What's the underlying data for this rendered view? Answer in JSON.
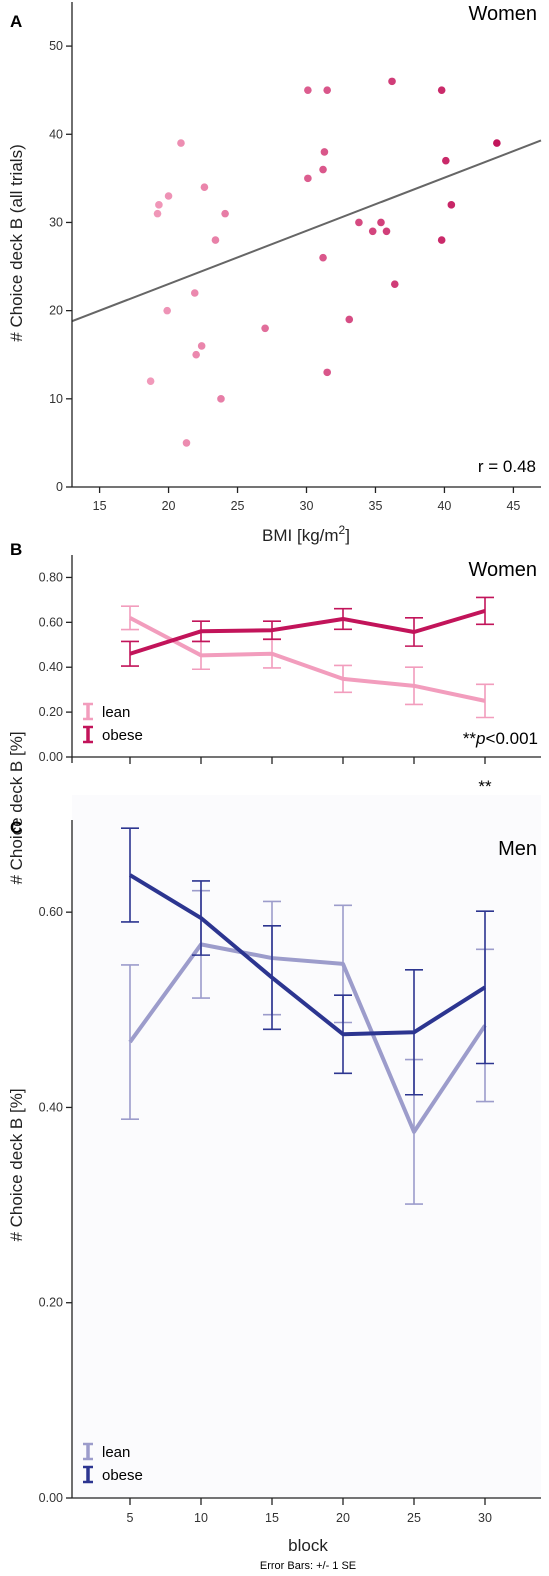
{
  "chart_data": [
    {
      "panel": "A",
      "type": "scatter",
      "title": "Women",
      "xlabel": "BMI [kg/m2]",
      "ylabel": "# Choice deck B (all trials)",
      "xlim": [
        13,
        47
      ],
      "ylim": [
        0,
        55
      ],
      "xticks": [
        15,
        20,
        25,
        30,
        35,
        40,
        45
      ],
      "yticks": [
        0,
        10,
        20,
        30,
        40,
        50
      ],
      "annotation": "r = 0.48",
      "trendline": {
        "x": [
          13,
          47
        ],
        "y": [
          18.8,
          39.3
        ]
      },
      "colors": {
        "low": "#f29dbd",
        "high": "#c2145a",
        "trendline": "#666666"
      },
      "points": [
        {
          "x": 18.7,
          "y": 12
        },
        {
          "x": 19.2,
          "y": 31
        },
        {
          "x": 19.3,
          "y": 32
        },
        {
          "x": 19.9,
          "y": 20
        },
        {
          "x": 20.0,
          "y": 33
        },
        {
          "x": 20.9,
          "y": 39
        },
        {
          "x": 21.3,
          "y": 5
        },
        {
          "x": 21.9,
          "y": 22
        },
        {
          "x": 22.0,
          "y": 15
        },
        {
          "x": 22.4,
          "y": 16
        },
        {
          "x": 22.6,
          "y": 34
        },
        {
          "x": 23.4,
          "y": 28
        },
        {
          "x": 23.8,
          "y": 10
        },
        {
          "x": 24.1,
          "y": 31
        },
        {
          "x": 27.0,
          "y": 18
        },
        {
          "x": 30.1,
          "y": 35
        },
        {
          "x": 30.1,
          "y": 45
        },
        {
          "x": 31.2,
          "y": 26
        },
        {
          "x": 31.2,
          "y": 36
        },
        {
          "x": 31.3,
          "y": 38
        },
        {
          "x": 31.5,
          "y": 45
        },
        {
          "x": 31.5,
          "y": 13
        },
        {
          "x": 33.1,
          "y": 19
        },
        {
          "x": 33.8,
          "y": 30
        },
        {
          "x": 34.8,
          "y": 29
        },
        {
          "x": 35.4,
          "y": 30
        },
        {
          "x": 35.8,
          "y": 29
        },
        {
          "x": 36.2,
          "y": 46
        },
        {
          "x": 36.4,
          "y": 23
        },
        {
          "x": 39.8,
          "y": 28
        },
        {
          "x": 39.8,
          "y": 45
        },
        {
          "x": 40.1,
          "y": 37
        },
        {
          "x": 40.5,
          "y": 32
        },
        {
          "x": 43.8,
          "y": 39
        }
      ]
    },
    {
      "panel": "B",
      "type": "line",
      "title": "Women",
      "xlabel": "",
      "ylabel": "# Choice deck B [%]",
      "ylim": [
        0,
        0.9
      ],
      "yticks": [
        "0.00",
        "0.20",
        "0.40",
        "0.60",
        "0.80"
      ],
      "x": [
        5,
        10,
        15,
        20,
        25,
        30
      ],
      "annotation_marker": "**",
      "annotation_prefix": "**",
      "annotation_p": "p",
      "annotation_rest": "<0.001",
      "series": [
        {
          "name": "lean",
          "color": "#f29dbd",
          "values": [
            0.62,
            0.453,
            0.46,
            0.348,
            0.317,
            0.25
          ],
          "err": [
            0.052,
            0.062,
            0.063,
            0.06,
            0.083,
            0.074
          ]
        },
        {
          "name": "obese",
          "color": "#c2145a",
          "values": [
            0.46,
            0.56,
            0.565,
            0.615,
            0.557,
            0.651
          ],
          "err": [
            0.055,
            0.045,
            0.04,
            0.046,
            0.063,
            0.06
          ]
        }
      ]
    },
    {
      "panel": "C",
      "type": "line",
      "title": "Men",
      "xlabel": "block",
      "ylabel": "# Choice deck B [%]",
      "ylim": [
        0,
        0.72
      ],
      "yticks": [
        "0.00",
        "0.20",
        "0.40",
        "0.60"
      ],
      "x": [
        5,
        10,
        15,
        20,
        25,
        30
      ],
      "xticks": [
        "5",
        "10",
        "15",
        "20",
        "25",
        "30"
      ],
      "footnote": "Error Bars: +/- 1 SE",
      "series": [
        {
          "name": "lean",
          "color": "#9c9ccb",
          "values": [
            0.467,
            0.567,
            0.553,
            0.547,
            0.375,
            0.484
          ],
          "err": [
            0.079,
            0.055,
            0.058,
            0.06,
            0.074,
            0.078
          ]
        },
        {
          "name": "obese",
          "color": "#2c3590",
          "values": [
            0.638,
            0.594,
            0.533,
            0.475,
            0.477,
            0.523
          ],
          "err": [
            0.048,
            0.038,
            0.053,
            0.04,
            0.064,
            0.078
          ]
        }
      ]
    }
  ]
}
